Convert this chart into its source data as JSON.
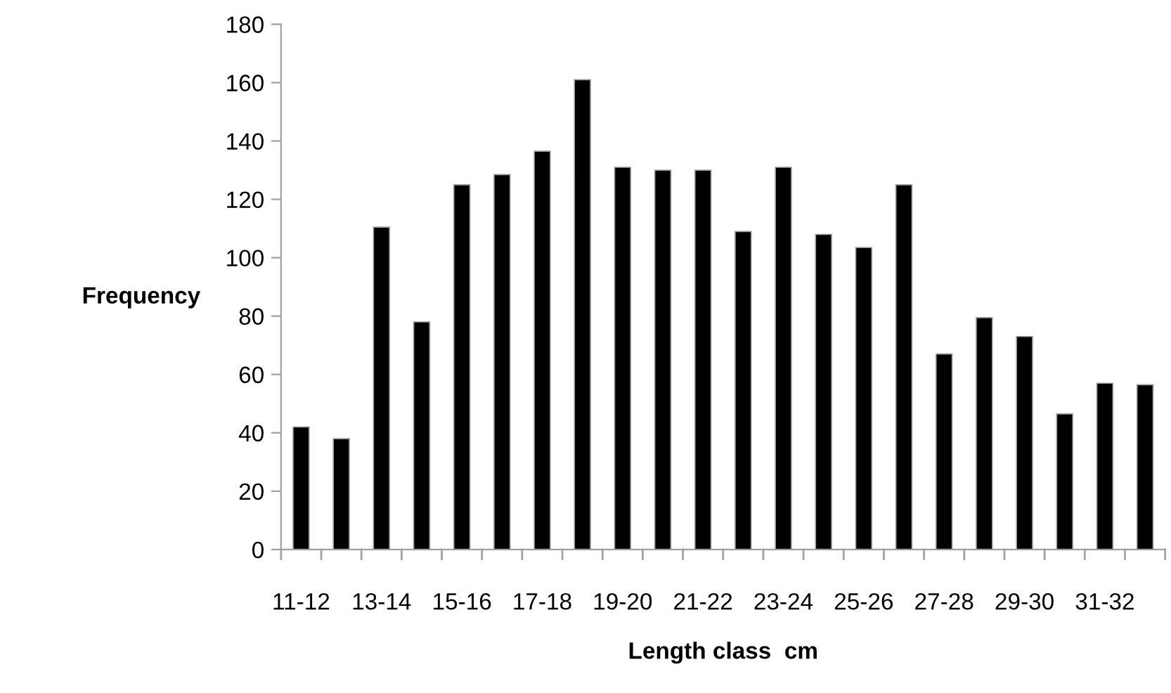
{
  "chart_data": {
    "type": "bar",
    "xlabel": "Length class  cm",
    "ylabel": "Frequency",
    "categories": [
      "11-12",
      null,
      "13-14",
      null,
      "15-16",
      null,
      "17-18",
      null,
      "19-20",
      null,
      "21-22",
      null,
      "23-24",
      null,
      "25-26",
      null,
      "27-28",
      null,
      "29-30",
      null,
      "31-32",
      null
    ],
    "values": [
      42,
      38,
      110.5,
      78,
      125,
      128.5,
      136.5,
      161,
      131,
      130,
      130,
      109,
      131,
      108,
      103.5,
      125,
      67,
      79.5,
      73,
      46.5,
      57,
      56.5
    ],
    "color": "#000000",
    "ylim": [
      0,
      180
    ],
    "yticks": [
      0,
      20,
      40,
      60,
      80,
      100,
      120,
      140,
      160,
      180
    ],
    "grid": false,
    "legend": false
  }
}
